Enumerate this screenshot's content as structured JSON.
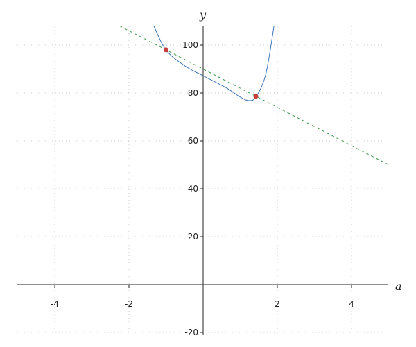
{
  "chart_data": {
    "type": "line",
    "xlabel": "a",
    "ylabel": "y",
    "xlim": [
      -5,
      5
    ],
    "ylim": [
      -20,
      108
    ],
    "x_ticks": [
      -4,
      -2,
      2,
      4
    ],
    "y_ticks": [
      -20,
      20,
      40,
      60,
      80,
      100
    ],
    "grid": true,
    "series": [
      {
        "style": "solid",
        "color": "#3a75b8",
        "points": [
          [
            -1.33,
            108
          ],
          [
            -1.0,
            97.9
          ],
          [
            -0.49,
            91.3
          ],
          [
            0,
            87.2
          ],
          [
            0.63,
            82.1
          ],
          [
            1.0,
            78.3
          ],
          [
            1.24,
            76.8
          ],
          [
            1.43,
            78.5
          ],
          [
            1.69,
            87.9
          ],
          [
            1.91,
            108
          ]
        ]
      },
      {
        "style": "dashed",
        "color": "#3a9a4a",
        "points": [
          [
            -2.25,
            108
          ],
          [
            5,
            50
          ]
        ]
      }
    ],
    "markers": {
      "color": "#cc3a3a",
      "points": [
        [
          -1.0,
          98
        ],
        [
          1.42,
          78.6
        ]
      ]
    }
  }
}
